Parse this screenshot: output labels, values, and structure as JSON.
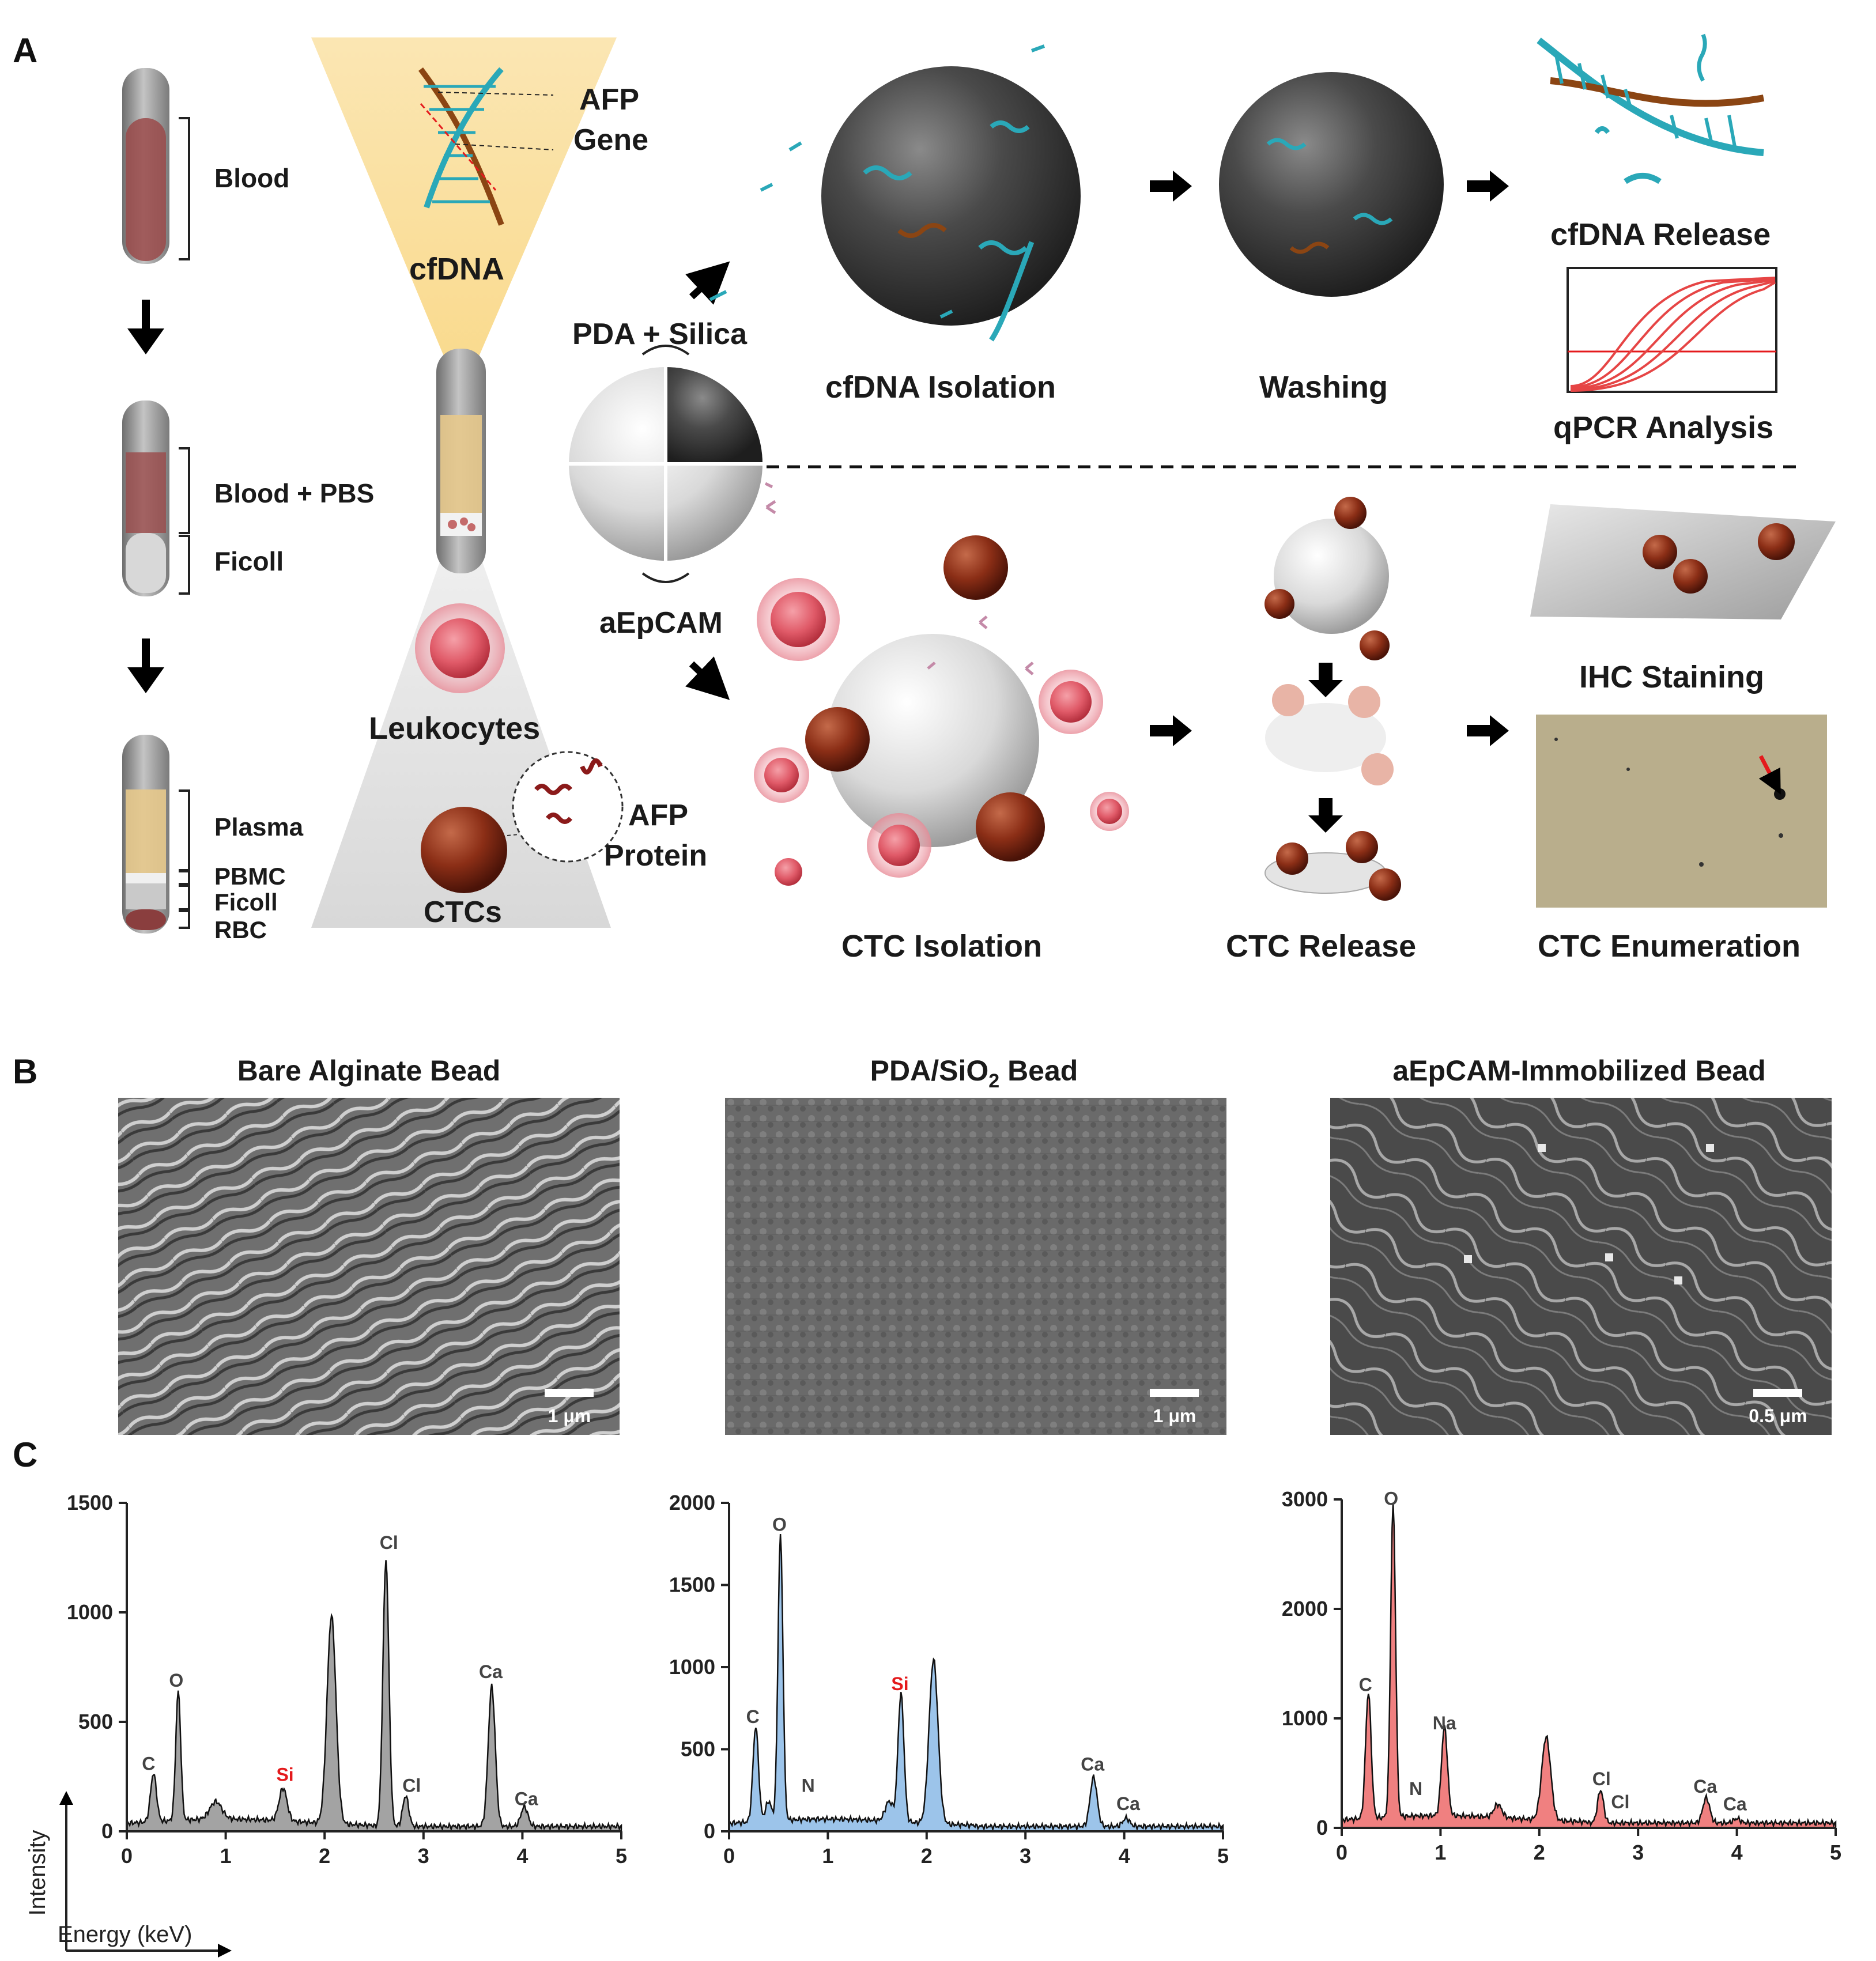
{
  "panels": {
    "a": "A",
    "b": "B",
    "c": "C"
  },
  "tubes": {
    "blood": "Blood",
    "blood_pbs": "Blood + PBS",
    "ficoll_1": "Ficoll",
    "plasma": "Plasma",
    "pbmc": "PBMC",
    "ficoll_2": "Ficoll",
    "rbc": "RBC"
  },
  "funnel": {
    "afp_gene_1": "AFP",
    "afp_gene_2": "Gene",
    "cfdna": "cfDNA",
    "leukocytes": "Leukocytes",
    "afp_protein_1": "AFP",
    "afp_protein_2": "Protein",
    "ctcs": "CTCs"
  },
  "bead": {
    "pda_silica": "PDA + Silica",
    "aepcam": "aEpCAM"
  },
  "workflow": {
    "cfdna_isolation": "cfDNA Isolation",
    "washing": "Washing",
    "cfdna_release": "cfDNA Release",
    "qpcr": "qPCR Analysis",
    "ctc_isolation": "CTC Isolation",
    "ctc_release": "CTC Release",
    "ihc": "IHC Staining",
    "ctc_enumeration": "CTC Enumeration"
  },
  "sem": [
    {
      "title": "Bare Alginate Bead",
      "scale": "1 μm"
    },
    {
      "title_pre": "PDA/SiO",
      "title_sub": "2",
      "title_post": " Bead",
      "scale": "1 μm"
    },
    {
      "title": "aEpCAM-Immobilized Bead",
      "scale": "0.5 μm"
    }
  ],
  "axes": {
    "ylabel": "Intensity",
    "xlabel": "Energy (keV)"
  },
  "colors": {
    "gray": "#a3a3a3",
    "blue": "#9cc4ea",
    "red": "#f08080",
    "si_label": "#e41a1c",
    "arrow": "#000000"
  },
  "chart_data": [
    {
      "type": "area",
      "title": "",
      "color": "gray",
      "xlim": [
        0,
        5
      ],
      "ylim": [
        0,
        1500
      ],
      "x_ticks": [
        0,
        1,
        2,
        3,
        4,
        5
      ],
      "y_ticks": [
        0,
        500,
        1000,
        1500
      ],
      "peaks": [
        {
          "x": 0.27,
          "y": 220,
          "w": 0.03
        },
        {
          "x": 0.52,
          "y": 590,
          "w": 0.025
        },
        {
          "x": 0.9,
          "y": 80,
          "w": 0.06
        },
        {
          "x": 1.58,
          "y": 150,
          "w": 0.04
        },
        {
          "x": 2.07,
          "y": 950,
          "w": 0.045
        },
        {
          "x": 2.62,
          "y": 1220,
          "w": 0.03
        },
        {
          "x": 2.82,
          "y": 140,
          "w": 0.03
        },
        {
          "x": 3.69,
          "y": 640,
          "w": 0.035
        },
        {
          "x": 4.02,
          "y": 90,
          "w": 0.035
        }
      ],
      "labels": [
        {
          "text": "C",
          "x": 0.22,
          "y": 280
        },
        {
          "text": "O",
          "x": 0.5,
          "y": 660
        },
        {
          "text": "Si",
          "x": 1.6,
          "y": 230,
          "red": true
        },
        {
          "text": "Cl",
          "x": 2.65,
          "y": 1290
        },
        {
          "text": "Cl",
          "x": 2.88,
          "y": 180
        },
        {
          "text": "Ca",
          "x": 3.68,
          "y": 700
        },
        {
          "text": "Ca",
          "x": 4.04,
          "y": 120
        }
      ]
    },
    {
      "type": "area",
      "title": "",
      "color": "blue",
      "xlim": [
        0,
        5
      ],
      "ylim": [
        0,
        2000
      ],
      "x_ticks": [
        0,
        1,
        2,
        3,
        4,
        5
      ],
      "y_ticks": [
        0,
        500,
        1000,
        1500,
        2000
      ],
      "peaks": [
        {
          "x": 0.27,
          "y": 580,
          "w": 0.028
        },
        {
          "x": 0.4,
          "y": 120,
          "w": 0.03
        },
        {
          "x": 0.52,
          "y": 1740,
          "w": 0.025
        },
        {
          "x": 1.62,
          "y": 120,
          "w": 0.04
        },
        {
          "x": 1.74,
          "y": 780,
          "w": 0.03
        },
        {
          "x": 2.07,
          "y": 1000,
          "w": 0.045
        },
        {
          "x": 3.69,
          "y": 300,
          "w": 0.035
        },
        {
          "x": 4.02,
          "y": 50,
          "w": 0.035
        }
      ],
      "labels": [
        {
          "text": "C",
          "x": 0.24,
          "y": 660
        },
        {
          "text": "O",
          "x": 0.51,
          "y": 1830
        },
        {
          "text": "N",
          "x": 0.8,
          "y": 240
        },
        {
          "text": "Si",
          "x": 1.73,
          "y": 860,
          "red": true
        },
        {
          "text": "Ca",
          "x": 3.68,
          "y": 370
        },
        {
          "text": "Ca",
          "x": 4.04,
          "y": 130
        }
      ]
    },
    {
      "type": "area",
      "title": "",
      "color": "red",
      "xlim": [
        0,
        5
      ],
      "ylim": [
        0,
        3000
      ],
      "x_ticks": [
        0,
        1,
        2,
        3,
        4,
        5
      ],
      "y_ticks": [
        0,
        1000,
        2000,
        3000
      ],
      "peaks": [
        {
          "x": 0.27,
          "y": 1150,
          "w": 0.028
        },
        {
          "x": 0.52,
          "y": 2860,
          "w": 0.025
        },
        {
          "x": 1.04,
          "y": 810,
          "w": 0.03
        },
        {
          "x": 1.58,
          "y": 120,
          "w": 0.04
        },
        {
          "x": 2.07,
          "y": 760,
          "w": 0.045
        },
        {
          "x": 2.62,
          "y": 300,
          "w": 0.03
        },
        {
          "x": 3.69,
          "y": 230,
          "w": 0.035
        },
        {
          "x": 4.0,
          "y": 40,
          "w": 0.035
        }
      ],
      "labels": [
        {
          "text": "C",
          "x": 0.24,
          "y": 1250
        },
        {
          "text": "O",
          "x": 0.5,
          "y": 2950
        },
        {
          "text": "N",
          "x": 0.75,
          "y": 300
        },
        {
          "text": "Na",
          "x": 1.04,
          "y": 900
        },
        {
          "text": "Cl",
          "x": 2.63,
          "y": 390
        },
        {
          "text": "Cl",
          "x": 2.82,
          "y": 180,
          "small": true
        },
        {
          "text": "Ca",
          "x": 3.68,
          "y": 320
        },
        {
          "text": "Ca",
          "x": 3.98,
          "y": 160,
          "small": true
        }
      ]
    }
  ]
}
